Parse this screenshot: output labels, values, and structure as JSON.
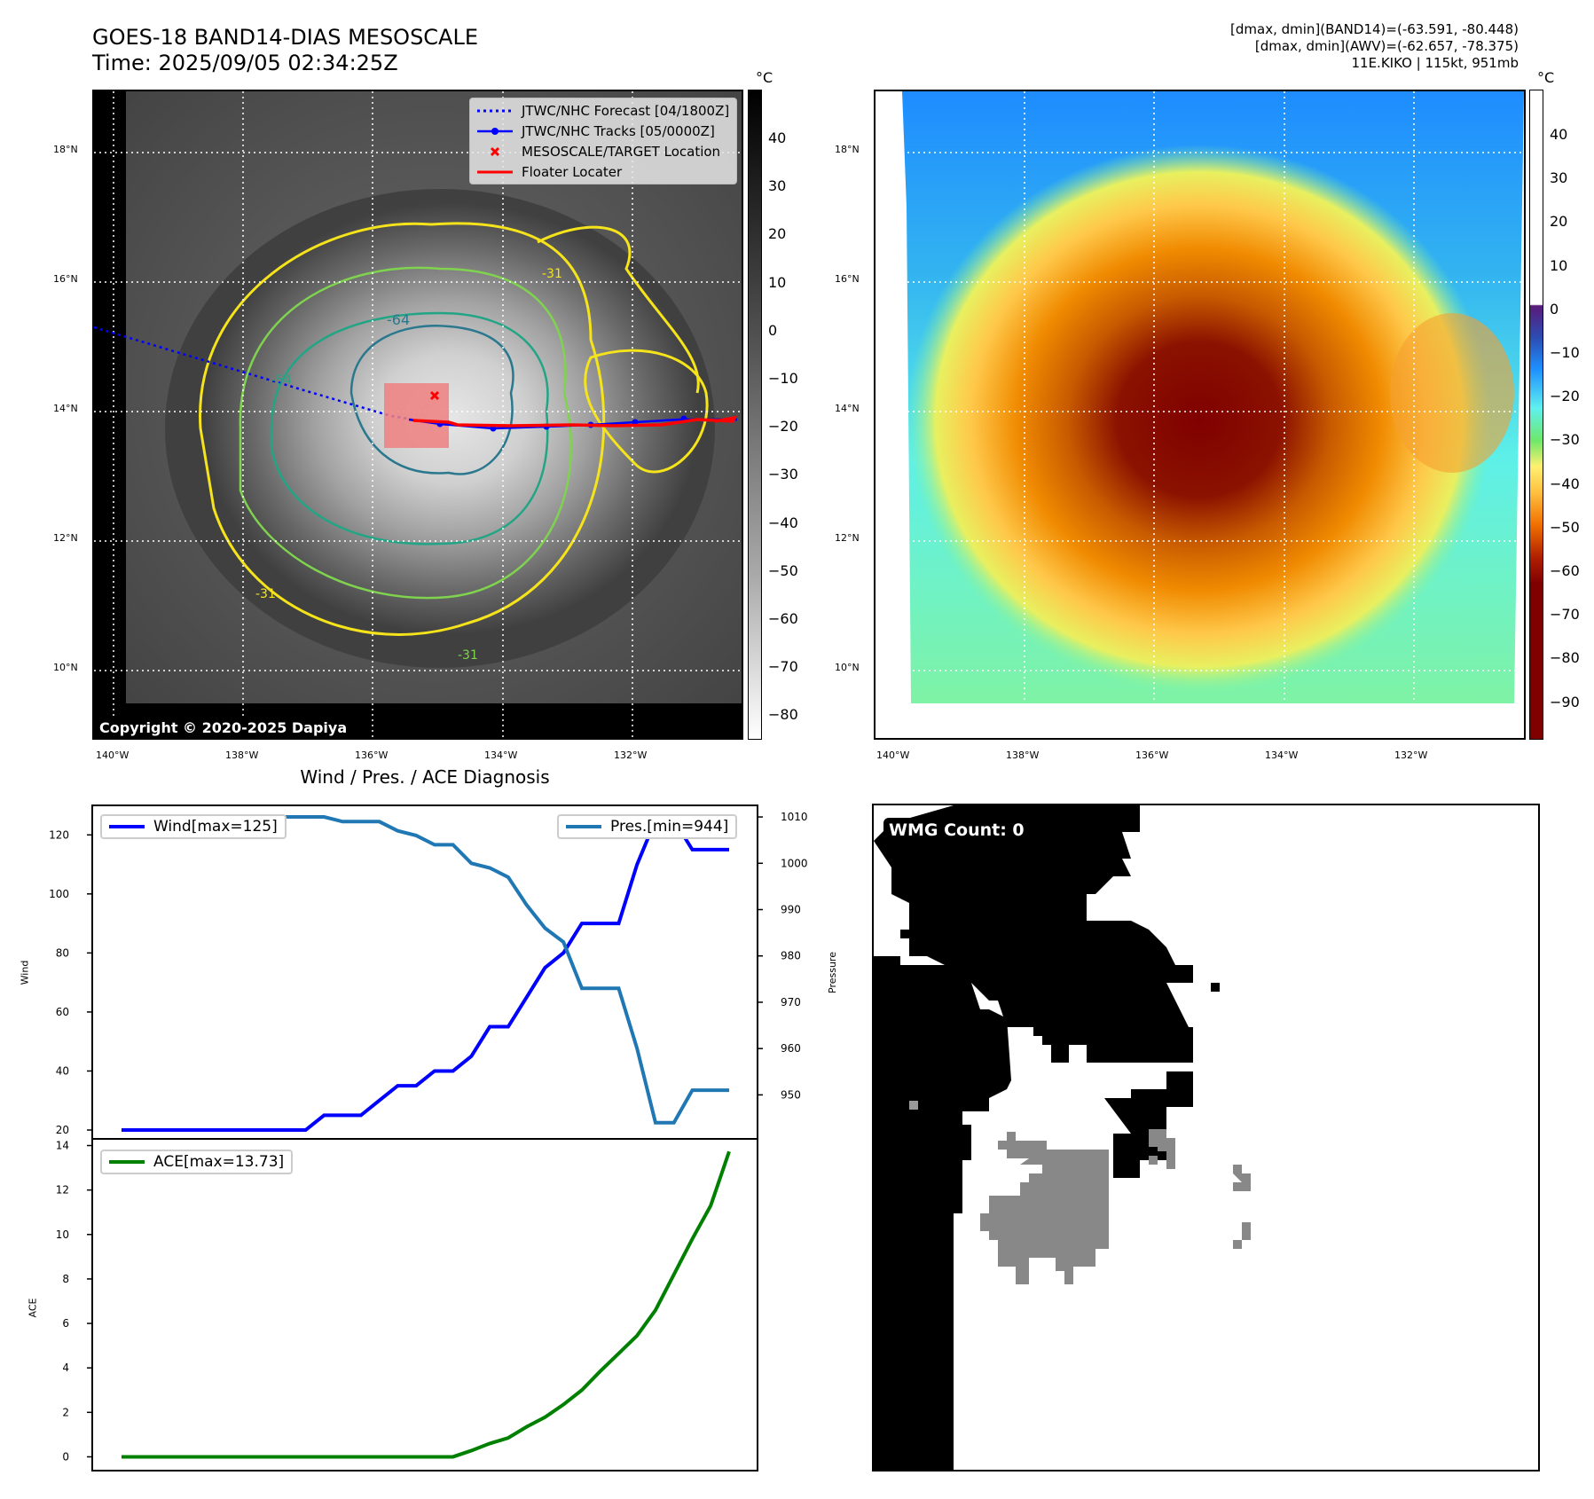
{
  "header": {
    "title_line1": "GOES-18 BAND14-DIAS MESOSCALE",
    "title_line2": "Time: 2025/09/05 02:34:25Z",
    "meta_line1": "[dmax, dmin](BAND14)=(-63.591, -80.448)",
    "meta_line2": "[dmax, dmin](AWV)=(-62.657, -78.375)",
    "meta_line3": "11E.KIKO | 115kt, 951mb"
  },
  "ir_panel": {
    "lat_ticks": [
      "18°N",
      "16°N",
      "14°N",
      "12°N",
      "10°N"
    ],
    "lon_ticks": [
      "140°W",
      "138°W",
      "136°W",
      "134°W",
      "132°W"
    ],
    "contour_labels": [
      "-64",
      "-31",
      "-54",
      "-31",
      "-31"
    ],
    "copyright": "Copyright © 2020-2025 Dapiya",
    "legend": [
      {
        "label": "JTWC/NHC Forecast [04/1800Z]",
        "color": "#0000ff",
        "style": "dotted"
      },
      {
        "label": "JTWC/NHC Tracks [05/0000Z]",
        "color": "#0000ff",
        "style": "line-marker"
      },
      {
        "label": "MESOSCALE/TARGET Location",
        "color": "#ff0000",
        "style": "x-marker"
      },
      {
        "label": "Floater Locater",
        "color": "#ff0000",
        "style": "line"
      }
    ],
    "colorbar": {
      "unit": "°C",
      "ticks": [
        "40",
        "30",
        "20",
        "10",
        "0",
        "−10",
        "−20",
        "−30",
        "−40",
        "−50",
        "−60",
        "−70",
        "−80"
      ]
    }
  },
  "awv_panel": {
    "lat_ticks": [
      "18°N",
      "16°N",
      "14°N",
      "12°N",
      "10°N"
    ],
    "lon_ticks": [
      "140°W",
      "138°W",
      "136°W",
      "134°W",
      "132°W"
    ],
    "colorbar": {
      "unit": "°C",
      "ticks": [
        "40",
        "30",
        "20",
        "10",
        "0",
        "−10",
        "−20",
        "−30",
        "−40",
        "−50",
        "−60",
        "−70",
        "−80",
        "−90"
      ]
    }
  },
  "wmg_panel": {
    "badge": "WMG Count: 0"
  },
  "chart_data": [
    {
      "type": "line",
      "title": "Wind / Pres. / ACE Diagnosis",
      "ylabel": "Wind",
      "ylabel_right": "Pressure",
      "ylim": [
        17,
        130
      ],
      "ylim_right": [
        940.5,
        1012.5
      ],
      "yticks": [
        "20",
        "40",
        "60",
        "80",
        "100",
        "120"
      ],
      "yticks_right": [
        "950",
        "960",
        "970",
        "980",
        "990",
        "1000",
        "1010"
      ],
      "x": [
        0,
        1,
        2,
        3,
        4,
        5,
        6,
        7,
        8,
        9,
        10,
        11,
        12,
        13,
        14,
        15,
        16,
        17,
        18,
        19,
        20,
        21,
        22,
        23,
        24,
        25,
        26,
        27,
        28,
        29,
        30,
        31,
        32,
        33
      ],
      "series": [
        {
          "name": "Wind[max=125]",
          "axis": "left",
          "color": "#0000ff",
          "values": [
            20,
            20,
            20,
            20,
            20,
            20,
            20,
            20,
            20,
            20,
            20,
            25,
            25,
            25,
            30,
            35,
            35,
            40,
            40,
            45,
            55,
            55,
            65,
            75,
            80,
            90,
            90,
            90,
            110,
            125,
            125,
            115,
            115,
            115
          ]
        },
        {
          "name": "Pres.[min=944]",
          "axis": "right",
          "color": "#1f77b4",
          "values": [
            1010,
            1010,
            1010,
            1010,
            1010,
            1010,
            1010,
            1010,
            1010,
            1010,
            1010,
            1010,
            1009,
            1009,
            1009,
            1007,
            1006,
            1004,
            1004,
            1000,
            999,
            997,
            991,
            986,
            983,
            973,
            973,
            973,
            960,
            944,
            944,
            951,
            951,
            951
          ]
        }
      ],
      "legend": [
        "Wind[max=125]",
        "Pres.[min=944]"
      ]
    },
    {
      "type": "line",
      "ylabel": "ACE",
      "ylim": [
        -0.7,
        14.3
      ],
      "yticks": [
        "0",
        "2",
        "4",
        "6",
        "8",
        "10",
        "12",
        "14"
      ],
      "x": [
        0,
        1,
        2,
        3,
        4,
        5,
        6,
        7,
        8,
        9,
        10,
        11,
        12,
        13,
        14,
        15,
        16,
        17,
        18,
        19,
        20,
        21,
        22,
        23,
        24,
        25,
        26,
        27,
        28,
        29,
        30,
        31,
        32,
        33
      ],
      "series": [
        {
          "name": "ACE[max=13.73]",
          "color": "#008000",
          "values": [
            0,
            0,
            0,
            0,
            0,
            0,
            0,
            0,
            0,
            0,
            0,
            0,
            0,
            0,
            0,
            0,
            0,
            0,
            0,
            0.28,
            0.6,
            0.85,
            1.35,
            1.78,
            2.35,
            3.0,
            3.85,
            4.65,
            5.45,
            6.6,
            8.2,
            9.8,
            11.3,
            13.73
          ]
        }
      ],
      "legend": [
        "ACE[max=13.73]"
      ]
    }
  ]
}
